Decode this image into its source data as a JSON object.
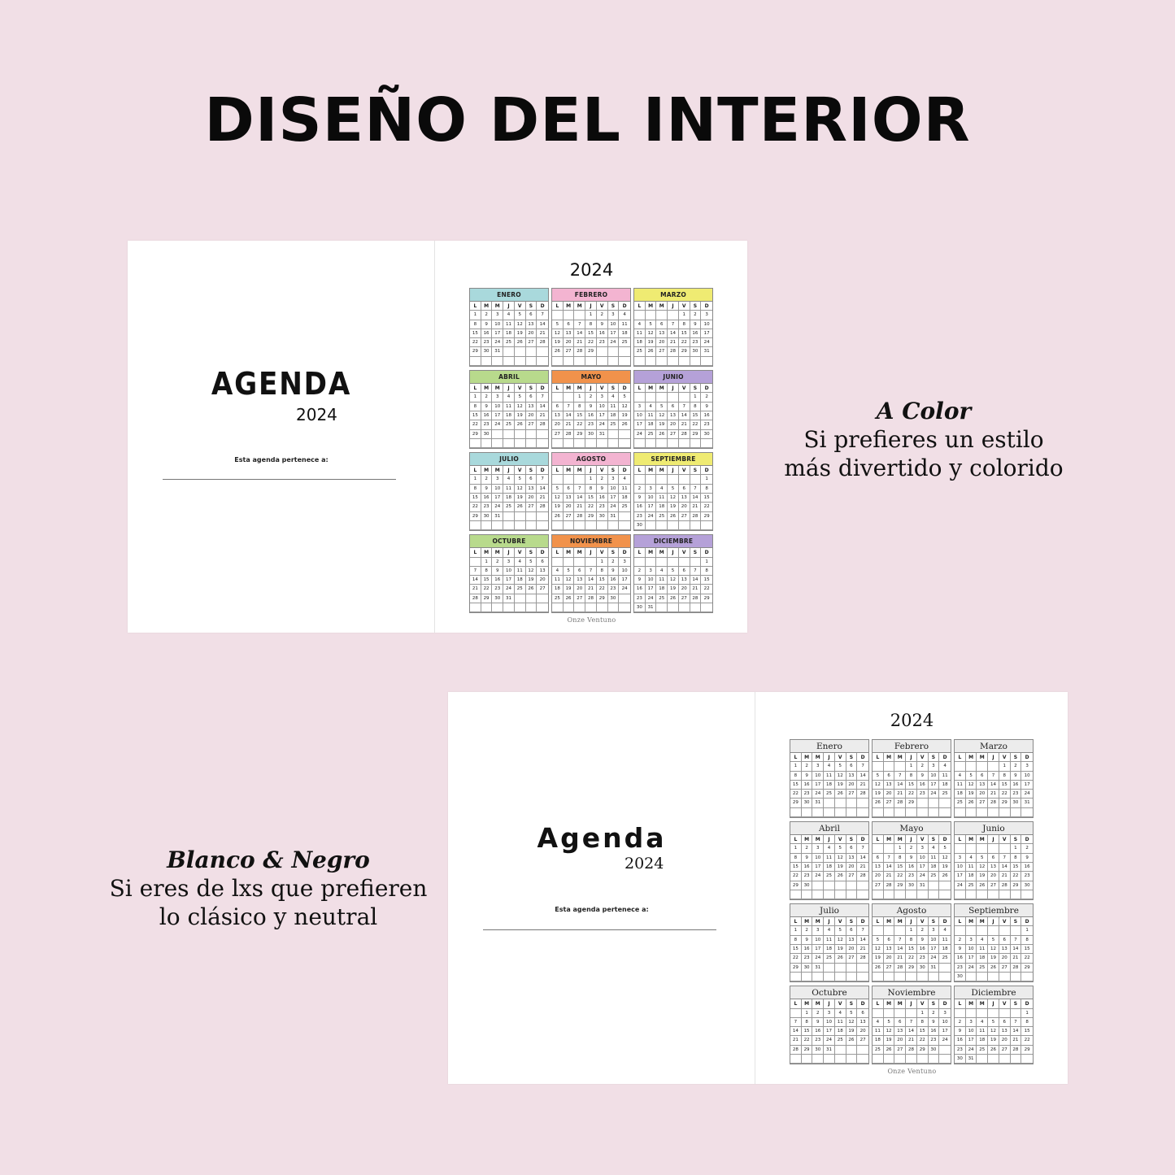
{
  "title": "DISEÑO DEL INTERIOR",
  "color_book": {
    "cover_title": "AGENDA",
    "cover_year": "2024",
    "owner_label": "Esta agenda pertenece a:",
    "calendar_year": "2024",
    "logo": "Onze Ventuno",
    "weekdays": [
      "L",
      "M",
      "M",
      "J",
      "V",
      "S",
      "D"
    ],
    "months": [
      {
        "name": "ENERO",
        "color": "#a9d9dc",
        "start": 0,
        "days": 31
      },
      {
        "name": "FEBRERO",
        "color": "#f3b4d1",
        "start": 3,
        "days": 29
      },
      {
        "name": "MARZO",
        "color": "#efeb72",
        "start": 4,
        "days": 31
      },
      {
        "name": "ABRIL",
        "color": "#b8da8c",
        "start": 0,
        "days": 30
      },
      {
        "name": "MAYO",
        "color": "#f1924b",
        "start": 2,
        "days": 31
      },
      {
        "name": "JUNIO",
        "color": "#b5a1d8",
        "start": 5,
        "days": 30
      },
      {
        "name": "JULIO",
        "color": "#a9d9dc",
        "start": 0,
        "days": 31
      },
      {
        "name": "AGOSTO",
        "color": "#f3b4d1",
        "start": 3,
        "days": 31
      },
      {
        "name": "SEPTIEMBRE",
        "color": "#efeb72",
        "start": 6,
        "days": 30
      },
      {
        "name": "OCTUBRE",
        "color": "#b8da8c",
        "start": 1,
        "days": 31
      },
      {
        "name": "NOVIEMBRE",
        "color": "#f1924b",
        "start": 4,
        "days": 30
      },
      {
        "name": "DICIEMBRE",
        "color": "#b5a1d8",
        "start": 6,
        "days": 31
      }
    ]
  },
  "bw_book": {
    "cover_title": "Agenda",
    "cover_year": "2024",
    "owner_label": "Esta agenda pertenece a:",
    "calendar_year": "2024",
    "logo": "Onze Ventuno",
    "weekdays": [
      "L",
      "M",
      "M",
      "J",
      "V",
      "S",
      "D"
    ],
    "months": [
      {
        "name": "Enero",
        "start": 0,
        "days": 31
      },
      {
        "name": "Febrero",
        "start": 3,
        "days": 29
      },
      {
        "name": "Marzo",
        "start": 4,
        "days": 31
      },
      {
        "name": "Abril",
        "start": 0,
        "days": 30
      },
      {
        "name": "Mayo",
        "start": 2,
        "days": 31
      },
      {
        "name": "Junio",
        "start": 5,
        "days": 30
      },
      {
        "name": "Julio",
        "start": 0,
        "days": 31
      },
      {
        "name": "Agosto",
        "start": 3,
        "days": 31
      },
      {
        "name": "Septiembre",
        "start": 6,
        "days": 30
      },
      {
        "name": "Octubre",
        "start": 1,
        "days": 31
      },
      {
        "name": "Noviembre",
        "start": 4,
        "days": 30
      },
      {
        "name": "Diciembre",
        "start": 6,
        "days": 31
      }
    ]
  },
  "captions": {
    "color": {
      "heading": "A Color",
      "line1": "Si prefieres un estilo",
      "line2": "más divertido y colorido"
    },
    "bw": {
      "heading": "Blanco & Negro",
      "line1": "Si eres de lxs que prefieren",
      "line2": "lo clásico y neutral"
    }
  }
}
